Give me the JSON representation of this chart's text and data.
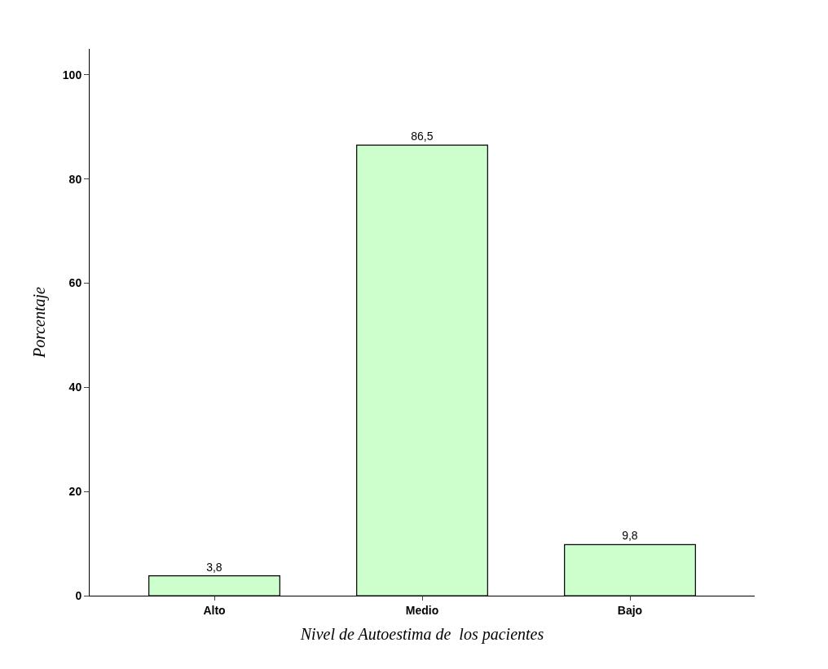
{
  "chart_data": {
    "type": "bar",
    "categories": [
      "Alto",
      "Medio",
      "Bajo"
    ],
    "values": [
      3.8,
      86.5,
      9.8
    ],
    "value_labels": [
      "3,8",
      "86,5",
      "9,8"
    ],
    "color": "#ccffcc",
    "xlabel": "Nivel de Autoestima de  los pacientes",
    "ylabel": "Porcentaje",
    "ylim": [
      0,
      105
    ],
    "yticks": [
      0,
      20,
      40,
      60,
      80,
      100
    ]
  }
}
